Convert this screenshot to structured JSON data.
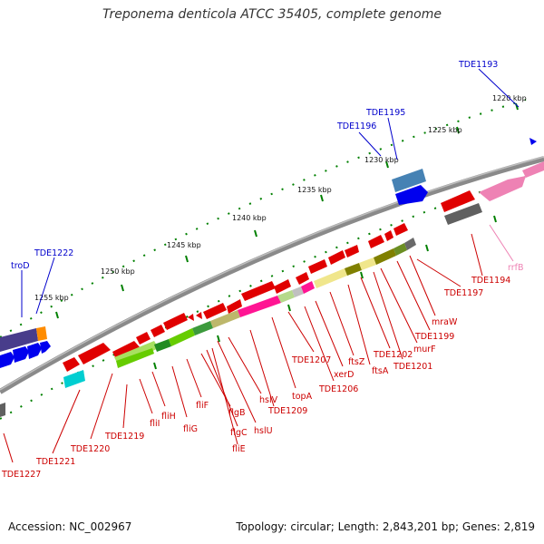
{
  "title": "Treponema denticola ATCC 35405, complete genome",
  "accession": "Accession: NC_002967",
  "genome_info": "Topology: circular; Length: 2,843,201 bp; Genes: 2,819",
  "colors": {
    "label_red": "#cc0000",
    "label_blue": "#0000cc",
    "label_pink": "#ee82b4",
    "backbone": "#808080",
    "tick_green": "#008000"
  },
  "kbp_labels": [
    "1220 kbp",
    "1225 kbp",
    "1230 kbp",
    "1235 kbp",
    "1240 kbp",
    "1245 kbp",
    "1250 kbp",
    "1255 kbp"
  ],
  "gene_labels_red": [
    "TDE1227",
    "TDE1221",
    "TDE1220",
    "TDE1219",
    "fliI",
    "fliH",
    "fliG",
    "fliF",
    "flgB",
    "flgC",
    "fliE",
    "hslU",
    "hslV",
    "TDE1209",
    "topA",
    "TDE1207",
    "TDE1206",
    "xerD",
    "ftsZ",
    "ftsA",
    "TDE1202",
    "TDE1201",
    "murF",
    "TDE1199",
    "mraW",
    "TDE1197",
    "TDE1194"
  ],
  "gene_labels_blue": [
    "TDE1193",
    "TDE1195",
    "TDE1196",
    "TDE1222",
    "troD"
  ],
  "gene_labels_pink": [
    "rrfB"
  ]
}
